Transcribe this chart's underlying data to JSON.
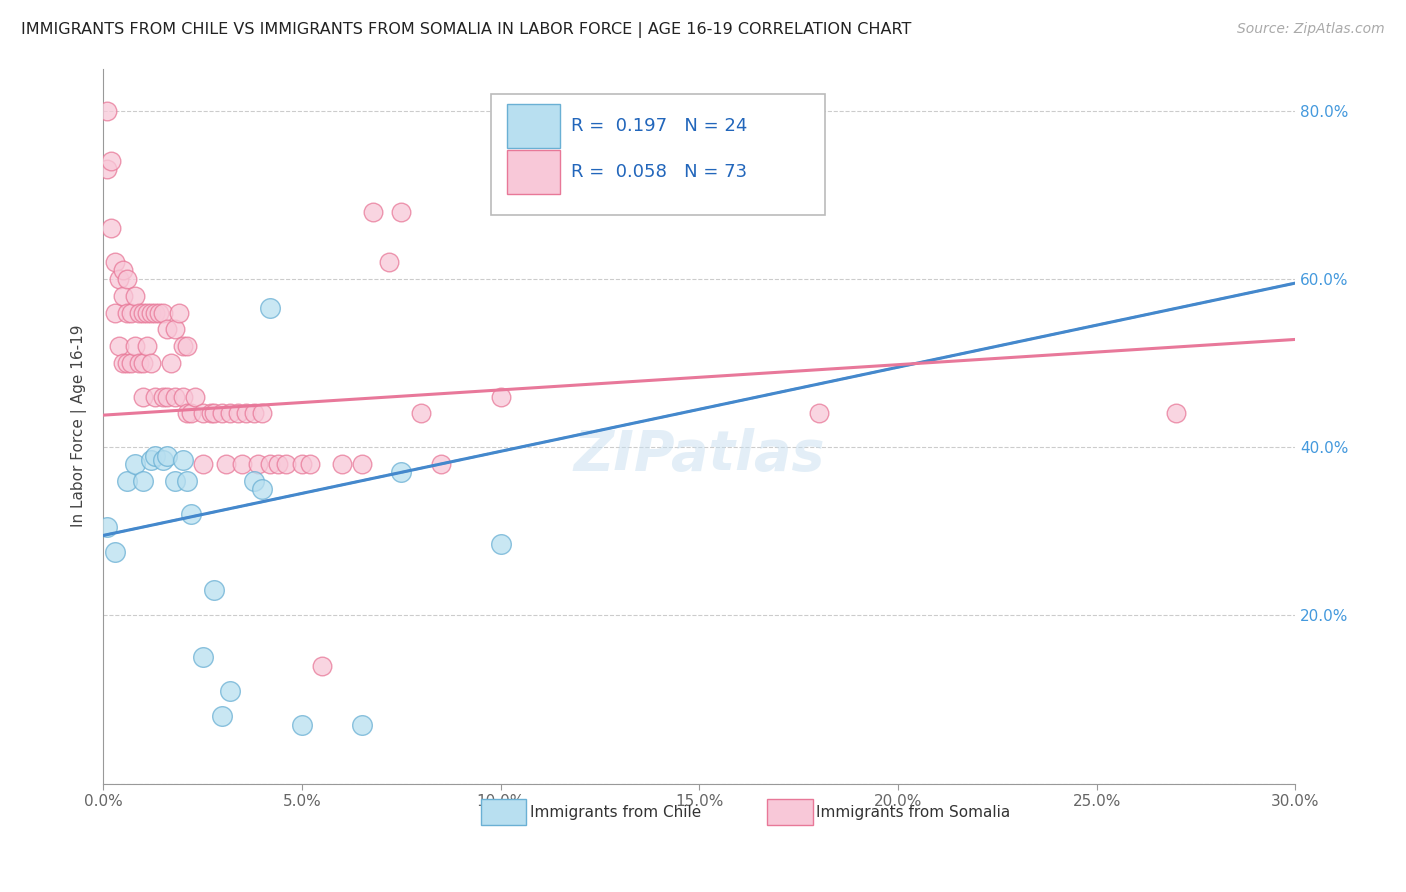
{
  "title": "IMMIGRANTS FROM CHILE VS IMMIGRANTS FROM SOMALIA IN LABOR FORCE | AGE 16-19 CORRELATION CHART",
  "source": "Source: ZipAtlas.com",
  "ylabel_left": "In Labor Force | Age 16-19",
  "xmin": 0.0,
  "xmax": 0.3,
  "ymin": 0.0,
  "ymax": 0.85,
  "chile_color": "#7ec8e3",
  "chile_color_fill": "#b8dff0",
  "chile_edge": "#6ab0d4",
  "somalia_color": "#f4a0b8",
  "somalia_color_fill": "#f8c8d8",
  "somalia_edge": "#e87898",
  "regression_chile_color": "#4488cc",
  "regression_somalia_color": "#e8789a",
  "chile_R": 0.197,
  "chile_N": 24,
  "somalia_R": 0.058,
  "somalia_N": 73,
  "legend_label_chile": "Immigrants from Chile",
  "legend_label_somalia": "Immigrants from Somalia",
  "watermark": "ZIPatlas",
  "chile_x": [
    0.001,
    0.003,
    0.006,
    0.008,
    0.01,
    0.012,
    0.013,
    0.015,
    0.016,
    0.018,
    0.02,
    0.021,
    0.022,
    0.025,
    0.028,
    0.03,
    0.032,
    0.038,
    0.04,
    0.042,
    0.05,
    0.065,
    0.075,
    0.1
  ],
  "chile_y": [
    0.305,
    0.275,
    0.36,
    0.38,
    0.36,
    0.385,
    0.39,
    0.385,
    0.39,
    0.36,
    0.385,
    0.36,
    0.32,
    0.15,
    0.23,
    0.08,
    0.11,
    0.36,
    0.35,
    0.565,
    0.07,
    0.07,
    0.37,
    0.285
  ],
  "somalia_x": [
    0.001,
    0.001,
    0.002,
    0.002,
    0.003,
    0.003,
    0.004,
    0.004,
    0.005,
    0.005,
    0.005,
    0.006,
    0.006,
    0.006,
    0.007,
    0.007,
    0.008,
    0.008,
    0.009,
    0.009,
    0.01,
    0.01,
    0.01,
    0.011,
    0.011,
    0.012,
    0.012,
    0.013,
    0.013,
    0.014,
    0.015,
    0.015,
    0.016,
    0.016,
    0.017,
    0.018,
    0.018,
    0.019,
    0.02,
    0.02,
    0.021,
    0.021,
    0.022,
    0.023,
    0.025,
    0.025,
    0.027,
    0.028,
    0.03,
    0.031,
    0.032,
    0.034,
    0.035,
    0.036,
    0.038,
    0.039,
    0.04,
    0.042,
    0.044,
    0.046,
    0.05,
    0.052,
    0.055,
    0.06,
    0.065,
    0.068,
    0.072,
    0.075,
    0.08,
    0.085,
    0.1,
    0.18,
    0.27
  ],
  "somalia_y": [
    0.8,
    0.73,
    0.74,
    0.66,
    0.62,
    0.56,
    0.6,
    0.52,
    0.61,
    0.58,
    0.5,
    0.6,
    0.56,
    0.5,
    0.56,
    0.5,
    0.58,
    0.52,
    0.56,
    0.5,
    0.56,
    0.5,
    0.46,
    0.56,
    0.52,
    0.56,
    0.5,
    0.56,
    0.46,
    0.56,
    0.56,
    0.46,
    0.54,
    0.46,
    0.5,
    0.54,
    0.46,
    0.56,
    0.52,
    0.46,
    0.52,
    0.44,
    0.44,
    0.46,
    0.44,
    0.38,
    0.44,
    0.44,
    0.44,
    0.38,
    0.44,
    0.44,
    0.38,
    0.44,
    0.44,
    0.38,
    0.44,
    0.38,
    0.38,
    0.38,
    0.38,
    0.38,
    0.14,
    0.38,
    0.38,
    0.68,
    0.62,
    0.68,
    0.44,
    0.38,
    0.46,
    0.44,
    0.44
  ]
}
